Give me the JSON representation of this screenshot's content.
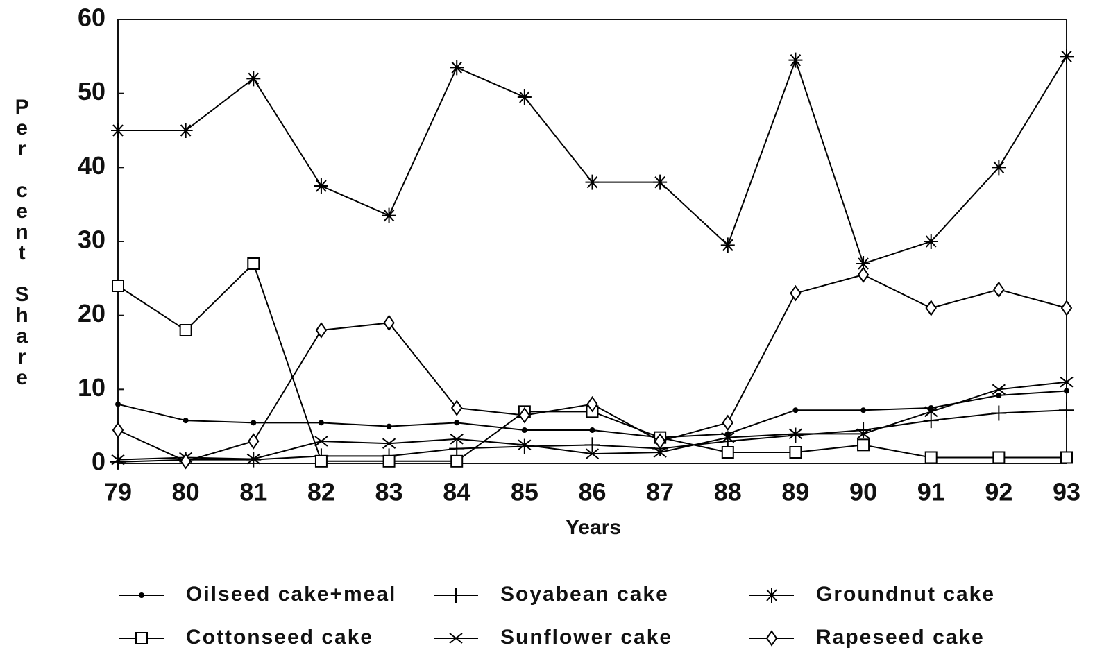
{
  "chart_data": {
    "type": "line",
    "x_label": "Years",
    "y_label": "Per cent Share",
    "categories": [
      "79",
      "80",
      "81",
      "82",
      "83",
      "84",
      "85",
      "86",
      "87",
      "88",
      "89",
      "90",
      "91",
      "92",
      "93"
    ],
    "ylim": [
      0,
      60
    ],
    "yticks": [
      0,
      10,
      20,
      30,
      40,
      50,
      60
    ],
    "series": [
      {
        "name": "Oilseed cake+meal",
        "color": "#000000",
        "marker": "dot",
        "values": [
          8,
          5.8,
          5.5,
          5.5,
          5,
          5.5,
          4.5,
          4.5,
          3.5,
          4,
          7.2,
          7.2,
          7.5,
          9.2,
          9.8
        ]
      },
      {
        "name": "Soyabean cake",
        "color": "#000000",
        "marker": "plus",
        "values": [
          0.2,
          0.5,
          0.5,
          1,
          1,
          2,
          2.3,
          2.5,
          2,
          3,
          3.8,
          4.5,
          5.8,
          6.8,
          7.2
        ]
      },
      {
        "name": "Groundnut cake",
        "color": "#000000",
        "marker": "asterisk",
        "values": [
          45,
          45,
          52,
          37.5,
          33.5,
          53.5,
          49.5,
          38,
          38,
          29.5,
          54.5,
          27,
          30,
          40,
          55
        ]
      },
      {
        "name": "Cottonseed cake",
        "color": "#000000",
        "marker": "square",
        "values": [
          24,
          18,
          27,
          0.3,
          0.3,
          0.3,
          7,
          7,
          3.5,
          1.5,
          1.5,
          2.5,
          0.8,
          0.8,
          0.8
        ]
      },
      {
        "name": "Sunflower cake",
        "color": "#000000",
        "marker": "cross",
        "values": [
          0.5,
          0.8,
          0.6,
          3,
          2.7,
          3.3,
          2.5,
          1.3,
          1.5,
          3.5,
          4,
          4,
          7,
          10,
          11
        ]
      },
      {
        "name": "Rapeseed cake",
        "color": "#000000",
        "marker": "diamond",
        "values": [
          4.5,
          0.3,
          3,
          18,
          19,
          7.5,
          6.5,
          8,
          3,
          5.5,
          23,
          25.5,
          21,
          23.5,
          21
        ]
      }
    ]
  }
}
